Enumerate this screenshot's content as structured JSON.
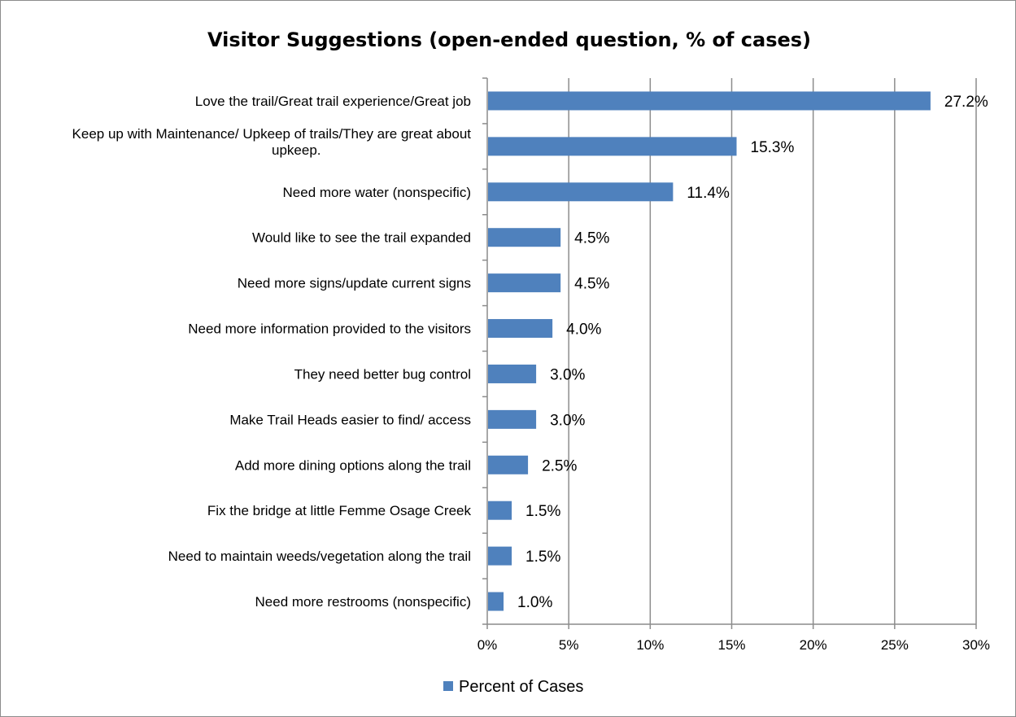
{
  "chart_data": {
    "type": "bar",
    "orientation": "horizontal",
    "title": "Visitor Suggestions (open-ended question, % of cases)",
    "categories": [
      "Love the trail/Great trail experience/Great job",
      "Keep up with Maintenance/ Upkeep of trails/They are great about upkeep.",
      "Need more water (nonspecific)",
      "Would like to see the trail expanded",
      "Need more signs/update current signs",
      "Need more information provided to the visitors",
      "They need better bug control",
      "Make Trail Heads easier to find/ access",
      "Add more dining options along the trail",
      "Fix the bridge at little Femme Osage Creek",
      "Need to maintain weeds/vegetation along the trail",
      "Need more restrooms (nonspecific)"
    ],
    "category_lines": [
      [
        "Love the trail/Great trail experience/Great job"
      ],
      [
        "Keep up with Maintenance/ Upkeep of trails/They are great about",
        "upkeep."
      ],
      [
        "Need more water (nonspecific)"
      ],
      [
        "Would like to see the trail expanded"
      ],
      [
        "Need more signs/update current signs"
      ],
      [
        "Need more information provided to the visitors"
      ],
      [
        "They need better bug control"
      ],
      [
        "Make Trail Heads easier to find/ access"
      ],
      [
        "Add more dining options along the trail"
      ],
      [
        "Fix the bridge at little Femme Osage Creek"
      ],
      [
        "Need to maintain weeds/vegetation along the trail"
      ],
      [
        "Need more restrooms (nonspecific)"
      ]
    ],
    "series": [
      {
        "name": "Percent of Cases",
        "values": [
          27.2,
          15.3,
          11.4,
          4.5,
          4.5,
          4.0,
          3.0,
          3.0,
          2.5,
          1.5,
          1.5,
          1.0
        ],
        "labels": [
          "27.2%",
          "15.3%",
          "11.4%",
          "4.5%",
          "4.5%",
          "4.0%",
          "3.0%",
          "3.0%",
          "2.5%",
          "1.5%",
          "1.5%",
          "1.0%"
        ]
      }
    ],
    "xlim": [
      0,
      30
    ],
    "xticks": [
      0,
      5,
      10,
      15,
      20,
      25,
      30
    ],
    "xtick_labels": [
      "0%",
      "5%",
      "10%",
      "15%",
      "20%",
      "25%",
      "30%"
    ],
    "grid": true,
    "legend": "bottom-center",
    "colors": {
      "bar": "#4f81bd",
      "grid": "#8c8c8c",
      "axis": "#8c8c8c"
    }
  }
}
